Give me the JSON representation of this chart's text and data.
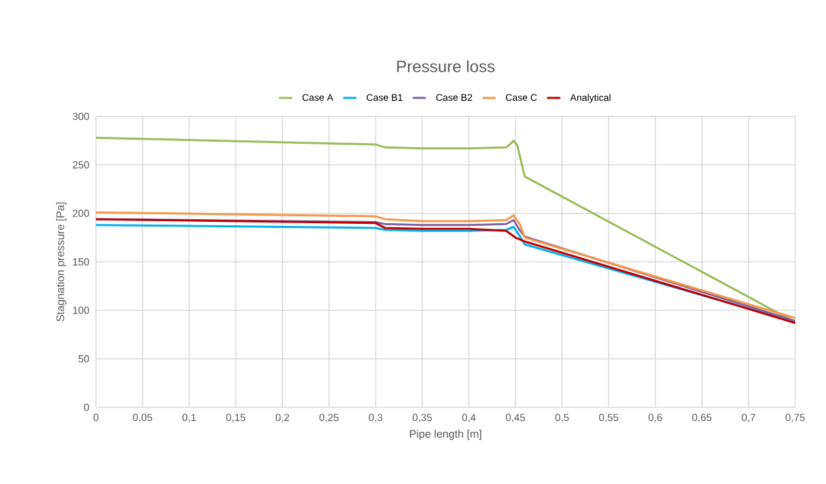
{
  "chart_data": {
    "type": "line",
    "title": "Pressure loss",
    "xlabel": "Pipe length [m]",
    "ylabel": "Stagnation pressure [Pa]",
    "xlim": [
      0,
      0.75
    ],
    "ylim": [
      0,
      300
    ],
    "xticks": [
      0,
      {
        "value": 0.05,
        "label": "0,05"
      },
      {
        "value": 0.1,
        "label": "0,1"
      },
      {
        "value": 0.15,
        "label": "0,15"
      },
      {
        "value": 0.2,
        "label": "0,2"
      },
      {
        "value": 0.25,
        "label": "0,25"
      },
      {
        "value": 0.3,
        "label": "0,3"
      },
      {
        "value": 0.35,
        "label": "0,35"
      },
      {
        "value": 0.4,
        "label": "0,4"
      },
      {
        "value": 0.45,
        "label": "0,45"
      },
      {
        "value": 0.5,
        "label": "0,5"
      },
      {
        "value": 0.55,
        "label": "0,55"
      },
      {
        "value": 0.6,
        "label": "0,6"
      },
      {
        "value": 0.65,
        "label": "0,65"
      },
      {
        "value": 0.7,
        "label": "0,7"
      },
      {
        "value": 0.75,
        "label": "0,75"
      }
    ],
    "yticks": [
      0,
      50,
      100,
      150,
      200,
      250,
      300
    ],
    "grid": true,
    "legend": "top",
    "line_style": "solid",
    "series": [
      {
        "name": "Case A",
        "color": "#9bbb59",
        "x": [
          0,
          0.3,
          0.31,
          0.35,
          0.4,
          0.44,
          0.445,
          0.448,
          0.452,
          0.46,
          0.75
        ],
        "values": [
          278,
          271,
          268,
          267,
          267,
          268,
          272,
          275,
          270,
          238,
          88
        ]
      },
      {
        "name": "Case B1",
        "color": "#00b0f0",
        "x": [
          0,
          0.3,
          0.31,
          0.35,
          0.4,
          0.44,
          0.448,
          0.455,
          0.46,
          0.75
        ],
        "values": [
          188,
          185,
          183,
          182,
          182,
          183,
          186,
          176,
          168,
          88
        ]
      },
      {
        "name": "Case B2",
        "color": "#8064a2",
        "x": [
          0,
          0.3,
          0.31,
          0.35,
          0.4,
          0.44,
          0.448,
          0.455,
          0.46,
          0.75
        ],
        "values": [
          194,
          191,
          189,
          188,
          188,
          189,
          193,
          182,
          176,
          89
        ]
      },
      {
        "name": "Case C",
        "color": "#f79646",
        "x": [
          0,
          0.3,
          0.31,
          0.35,
          0.4,
          0.44,
          0.448,
          0.455,
          0.46,
          0.75
        ],
        "values": [
          201,
          197,
          194,
          192,
          192,
          193,
          198,
          188,
          175,
          92
        ]
      },
      {
        "name": "Analytical",
        "color": "#c00000",
        "x": [
          0,
          0.3,
          0.31,
          0.35,
          0.4,
          0.44,
          0.45,
          0.46,
          0.75
        ],
        "values": [
          194,
          190,
          185,
          184,
          184,
          182,
          175,
          171,
          87
        ]
      }
    ]
  }
}
